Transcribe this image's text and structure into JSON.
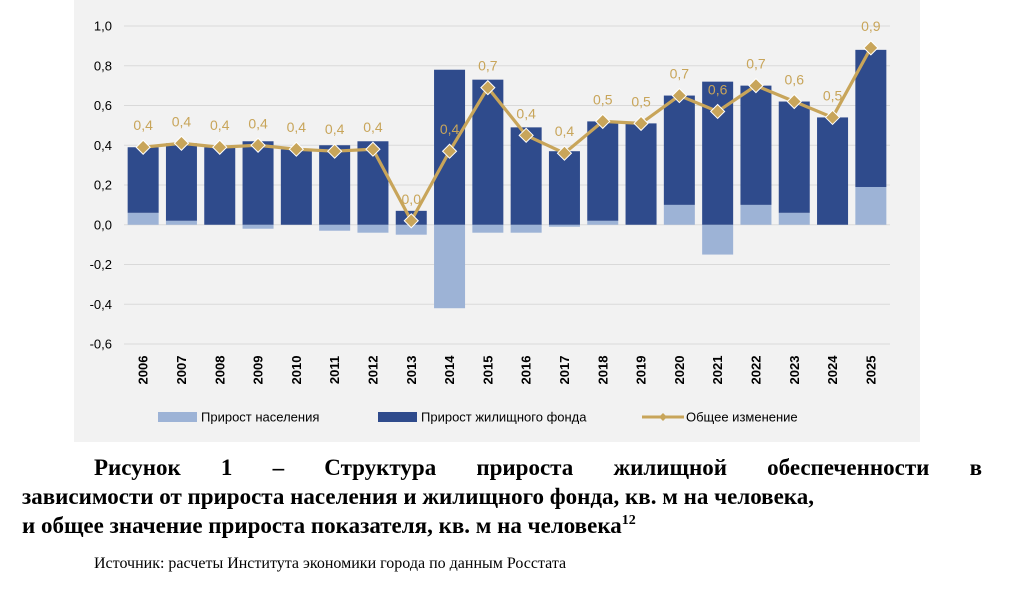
{
  "chart_data": {
    "type": "bar",
    "categories": [
      "2006",
      "2007",
      "2008",
      "2009",
      "2010",
      "2011",
      "2012",
      "2013",
      "2014",
      "2015",
      "2016",
      "2017",
      "2018",
      "2019",
      "2020",
      "2021",
      "2022",
      "2023",
      "2024",
      "2025"
    ],
    "ylim": [
      -0.6,
      1.0
    ],
    "yticks": [
      "1,0",
      "0,8",
      "0,6",
      "0,4",
      "0,2",
      "0,0",
      "-0,2",
      "-0,4",
      "-0,6"
    ],
    "ytick_values": [
      1.0,
      0.8,
      0.6,
      0.4,
      0.2,
      0.0,
      -0.2,
      -0.4,
      -0.6
    ],
    "grid": true,
    "legend_position": "bottom",
    "series": [
      {
        "name": "Прирост населения",
        "kind": "stacked-bar",
        "color": "#9db3d6",
        "values": [
          0.06,
          0.02,
          0.0,
          -0.02,
          0.0,
          -0.03,
          -0.04,
          -0.05,
          -0.42,
          -0.04,
          -0.04,
          -0.01,
          0.02,
          0.0,
          0.1,
          -0.15,
          0.1,
          0.06,
          0.0,
          0.19
        ]
      },
      {
        "name": "Прирост жилищного фонда",
        "kind": "stacked-bar",
        "color": "#2f4b8c",
        "values": [
          0.33,
          0.39,
          0.39,
          0.42,
          0.38,
          0.4,
          0.42,
          0.07,
          0.78,
          0.73,
          0.49,
          0.37,
          0.5,
          0.51,
          0.55,
          0.72,
          0.6,
          0.56,
          0.54,
          0.69
        ]
      },
      {
        "name": "Общее изменение",
        "kind": "line",
        "color": "#c8a55a",
        "values": [
          0.39,
          0.41,
          0.39,
          0.4,
          0.38,
          0.37,
          0.38,
          0.02,
          0.37,
          0.69,
          0.45,
          0.36,
          0.52,
          0.51,
          0.65,
          0.57,
          0.7,
          0.62,
          0.54,
          0.89
        ],
        "labels": [
          "0,4",
          "0,4",
          "0,4",
          "0,4",
          "0,4",
          "0,4",
          "0,4",
          "0,0",
          "0,4",
          "0,7",
          "0,4",
          "0,4",
          "0,5",
          "0,5",
          "0,7",
          "0,6",
          "0,7",
          "0,6",
          "0,5",
          "0,9"
        ]
      }
    ]
  },
  "caption": {
    "line1": "Рисунок 1 – Структура прироста жилищной обеспеченности в",
    "line2": "зависимости от прироста населения и жилищного фонда, кв. м на человека,",
    "line3": "и общее значение прироста показателя, кв. м на человека",
    "footnote_ref": "12"
  },
  "source": "Источник: расчеты Института экономики города по данным Росстата"
}
